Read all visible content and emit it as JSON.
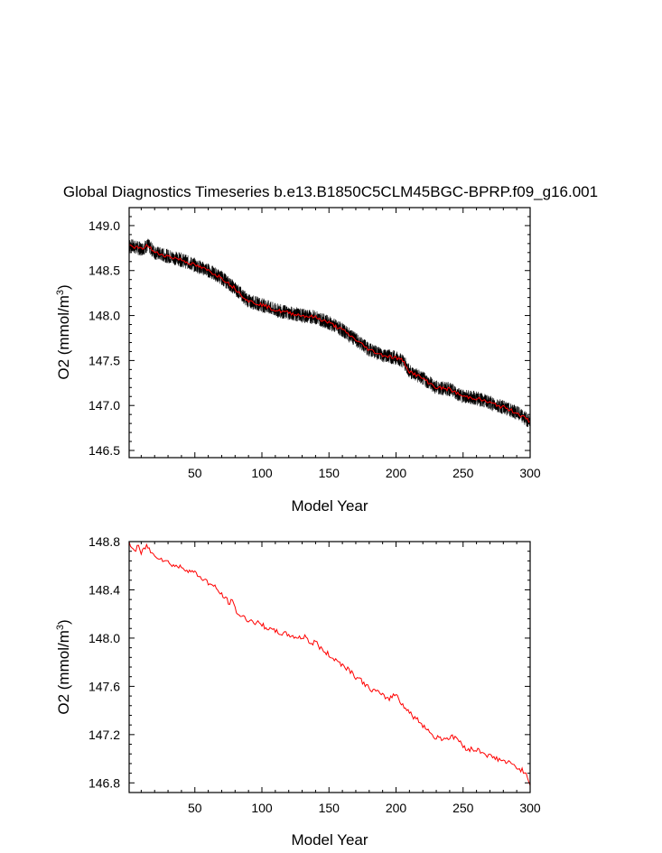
{
  "chart_data": [
    {
      "type": "line",
      "title": "Global Diagnostics Timeseries b.e13.B1850C5CLM45BGC-BPRP.f09_g16.001",
      "xlabel": "Model Year",
      "ylabel_main": "O2 (mmol/m",
      "ylabel_sup": "3",
      "ylabel_close": ")",
      "xlim": [
        1,
        300
      ],
      "ylim": [
        146.42,
        149.2
      ],
      "x_ticks": [
        "50",
        "100",
        "150",
        "200",
        "250",
        "300"
      ],
      "x_tick_values": [
        50,
        100,
        150,
        200,
        250,
        300
      ],
      "y_ticks": [
        "146.5",
        "147.0",
        "147.5",
        "148.0",
        "148.5",
        "149.0"
      ],
      "y_tick_values": [
        146.5,
        147.0,
        147.5,
        148.0,
        148.5,
        149.0
      ],
      "series": [
        {
          "kind": "monthly",
          "color": "#000000",
          "points": [
            [
              1,
              148.78
            ],
            [
              10,
              148.74
            ],
            [
              15,
              148.78
            ],
            [
              20,
              148.7
            ],
            [
              30,
              148.66
            ],
            [
              40,
              148.62
            ],
            [
              50,
              148.56
            ],
            [
              60,
              148.5
            ],
            [
              70,
              148.42
            ],
            [
              80,
              148.3
            ],
            [
              90,
              148.16
            ],
            [
              100,
              148.12
            ],
            [
              110,
              148.06
            ],
            [
              120,
              148.03
            ],
            [
              130,
              148.0
            ],
            [
              140,
              147.98
            ],
            [
              150,
              147.92
            ],
            [
              160,
              147.84
            ],
            [
              170,
              147.73
            ],
            [
              180,
              147.62
            ],
            [
              190,
              147.56
            ],
            [
              200,
              147.53
            ],
            [
              205,
              147.5
            ],
            [
              210,
              147.38
            ],
            [
              220,
              147.3
            ],
            [
              230,
              147.2
            ],
            [
              240,
              147.18
            ],
            [
              250,
              147.1
            ],
            [
              260,
              147.08
            ],
            [
              270,
              147.03
            ],
            [
              280,
              146.98
            ],
            [
              290,
              146.92
            ],
            [
              300,
              146.82
            ]
          ],
          "amplitude": 0.08
        },
        {
          "kind": "annual",
          "color": "#ff0000",
          "points": [
            [
              1,
              148.78
            ],
            [
              10,
              148.74
            ],
            [
              15,
              148.78
            ],
            [
              20,
              148.7
            ],
            [
              30,
              148.66
            ],
            [
              40,
              148.62
            ],
            [
              50,
              148.56
            ],
            [
              60,
              148.5
            ],
            [
              70,
              148.42
            ],
            [
              80,
              148.3
            ],
            [
              90,
              148.16
            ],
            [
              100,
              148.12
            ],
            [
              110,
              148.06
            ],
            [
              120,
              148.03
            ],
            [
              130,
              148.0
            ],
            [
              140,
              147.98
            ],
            [
              150,
              147.92
            ],
            [
              160,
              147.84
            ],
            [
              170,
              147.73
            ],
            [
              180,
              147.62
            ],
            [
              190,
              147.56
            ],
            [
              200,
              147.53
            ],
            [
              205,
              147.5
            ],
            [
              210,
              147.38
            ],
            [
              220,
              147.3
            ],
            [
              230,
              147.2
            ],
            [
              240,
              147.18
            ],
            [
              250,
              147.1
            ],
            [
              260,
              147.08
            ],
            [
              270,
              147.03
            ],
            [
              280,
              146.98
            ],
            [
              290,
              146.92
            ],
            [
              300,
              146.82
            ]
          ],
          "amplitude": 0.02
        }
      ]
    },
    {
      "type": "line",
      "title": "",
      "xlabel": "Model Year",
      "ylabel_main": "O2 (mmol/m",
      "ylabel_sup": "3",
      "ylabel_close": ")",
      "xlim": [
        1,
        300
      ],
      "ylim": [
        146.72,
        148.8
      ],
      "x_ticks": [
        "50",
        "100",
        "150",
        "200",
        "250",
        "300"
      ],
      "x_tick_values": [
        50,
        100,
        150,
        200,
        250,
        300
      ],
      "y_ticks": [
        "146.8",
        "147.2",
        "147.6",
        "148.0",
        "148.4",
        "148.8"
      ],
      "y_tick_values": [
        146.8,
        147.2,
        147.6,
        148.0,
        148.4,
        148.8
      ],
      "series": [
        {
          "kind": "annual",
          "color": "#ff0000",
          "points": [
            [
              1,
              148.79
            ],
            [
              5,
              148.72
            ],
            [
              8,
              148.76
            ],
            [
              10,
              148.7
            ],
            [
              14,
              148.77
            ],
            [
              18,
              148.7
            ],
            [
              22,
              148.68
            ],
            [
              28,
              148.64
            ],
            [
              35,
              148.6
            ],
            [
              42,
              148.58
            ],
            [
              50,
              148.54
            ],
            [
              55,
              148.5
            ],
            [
              60,
              148.46
            ],
            [
              65,
              148.42
            ],
            [
              70,
              148.36
            ],
            [
              75,
              148.3
            ],
            [
              78,
              148.3
            ],
            [
              82,
              148.2
            ],
            [
              88,
              148.16
            ],
            [
              95,
              148.13
            ],
            [
              100,
              148.11
            ],
            [
              108,
              148.06
            ],
            [
              115,
              148.04
            ],
            [
              122,
              148.02
            ],
            [
              128,
              148.0
            ],
            [
              133,
              148.02
            ],
            [
              136,
              147.95
            ],
            [
              140,
              147.97
            ],
            [
              145,
              147.9
            ],
            [
              150,
              147.86
            ],
            [
              155,
              147.82
            ],
            [
              160,
              147.78
            ],
            [
              165,
              147.74
            ],
            [
              170,
              147.68
            ],
            [
              175,
              147.64
            ],
            [
              180,
              147.58
            ],
            [
              185,
              147.56
            ],
            [
              190,
              147.52
            ],
            [
              195,
              147.5
            ],
            [
              200,
              147.54
            ],
            [
              203,
              147.48
            ],
            [
              207,
              147.42
            ],
            [
              212,
              147.36
            ],
            [
              218,
              147.3
            ],
            [
              224,
              147.24
            ],
            [
              228,
              147.18
            ],
            [
              235,
              147.17
            ],
            [
              245,
              147.18
            ],
            [
              250,
              147.1
            ],
            [
              255,
              147.08
            ],
            [
              262,
              147.07
            ],
            [
              270,
              147.02
            ],
            [
              278,
              146.99
            ],
            [
              285,
              146.96
            ],
            [
              290,
              146.93
            ],
            [
              295,
              146.9
            ],
            [
              300,
              146.8
            ]
          ],
          "amplitude": 0.022
        }
      ]
    }
  ]
}
